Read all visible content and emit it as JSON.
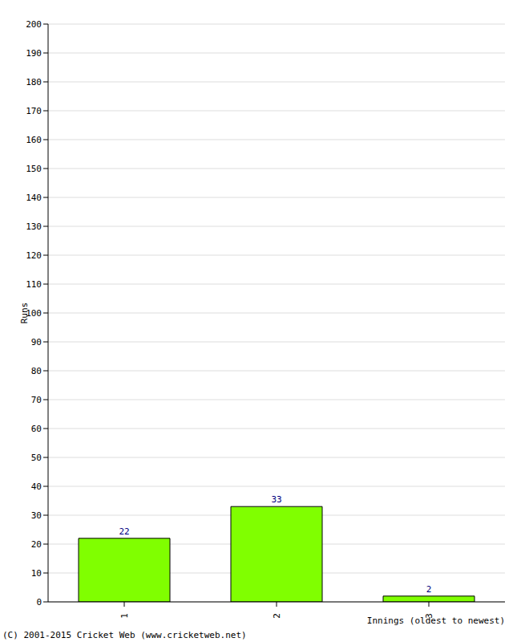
{
  "chart_data": {
    "type": "bar",
    "categories": [
      "1",
      "2",
      "3"
    ],
    "values": [
      22,
      33,
      2
    ],
    "color": "#80ff00",
    "ylim": [
      0,
      200
    ],
    "yticks": [
      0,
      10,
      20,
      30,
      40,
      50,
      60,
      70,
      80,
      90,
      100,
      110,
      120,
      130,
      140,
      150,
      160,
      170,
      180,
      190,
      200
    ],
    "grid": true,
    "data_labels": true,
    "x_label": "Innings (oldest to newest)",
    "y_label": "Runs",
    "annotations": [
      "(C) 2001-2015 Cricket Web (www.cricketweb.net)"
    ]
  }
}
